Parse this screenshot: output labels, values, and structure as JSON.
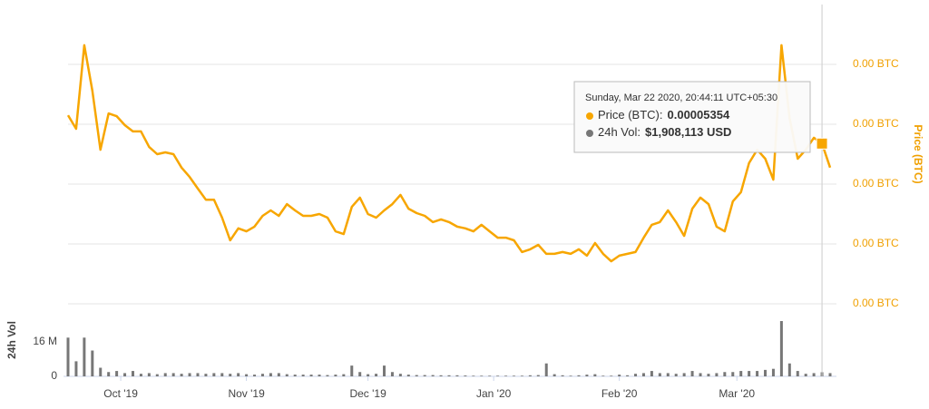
{
  "chart_data": [
    {
      "type": "line",
      "y_label": "Price (BTC)",
      "color": "#f7a600",
      "values": [
        6.3e-05,
        5.85e-05,
        8.64e-05,
        7.12e-05,
        5.15e-05,
        6.36e-05,
        6.27e-05,
        5.97e-05,
        5.76e-05,
        5.76e-05,
        5.24e-05,
        5e-05,
        5.06e-05,
        5e-05,
        4.55e-05,
        4.24e-05,
        3.85e-05,
        3.48e-05,
        3.48e-05,
        2.88e-05,
        2.12e-05,
        2.52e-05,
        2.42e-05,
        2.58e-05,
        2.94e-05,
        3.12e-05,
        2.94e-05,
        3.33e-05,
        3.12e-05,
        2.94e-05,
        2.94e-05,
        3e-05,
        2.88e-05,
        2.42e-05,
        2.33e-05,
        3.24e-05,
        3.55e-05,
        3e-05,
        2.88e-05,
        3.12e-05,
        3.33e-05,
        3.64e-05,
        3.18e-05,
        3.03e-05,
        2.94e-05,
        2.73e-05,
        2.82e-05,
        2.73e-05,
        2.58e-05,
        2.52e-05,
        2.42e-05,
        2.64e-05,
        2.42e-05,
        2.21e-05,
        2.21e-05,
        2.12e-05,
        1.73e-05,
        1.82e-05,
        1.97e-05,
        1.67e-05,
        1.67e-05,
        1.73e-05,
        1.67e-05,
        1.82e-05,
        1.61e-05,
        2.03e-05,
        1.67e-05,
        1.42e-05,
        1.61e-05,
        1.67e-05,
        1.73e-05,
        2.21e-05,
        2.64e-05,
        2.73e-05,
        3.12e-05,
        2.73e-05,
        2.27e-05,
        3.18e-05,
        3.55e-05,
        3.33e-05,
        2.58e-05,
        2.42e-05,
        3.42e-05,
        3.73e-05,
        4.7e-05,
        5.15e-05,
        4.85e-05,
        4.15e-05,
        8.64e-05,
        6.21e-05,
        4.85e-05,
        5.15e-05,
        5.55e-05,
        5.354e-05,
        4.55e-05
      ],
      "xlim": [
        0,
        94
      ],
      "ylim": [
        0,
        0.0001
      ],
      "yticks": [
        {
          "value": 0,
          "label": "0.00 BTC"
        },
        {
          "value": 2e-05,
          "label": "0.00 BTC"
        },
        {
          "value": 4e-05,
          "label": "0.00 BTC"
        },
        {
          "value": 6e-05,
          "label": "0.00 BTC"
        },
        {
          "value": 8e-05,
          "label": "0.00 BTC"
        }
      ],
      "grid": true,
      "tooltip": {
        "date": "Sunday, Mar 22 2020, 20:44:11 UTC+05:30",
        "price_name": "Price (BTC):",
        "volume_name": "24h Vol:",
        "volume_label": "$1,908,113 USD"
      }
    },
    {
      "type": "bar",
      "y_label": "24h Vol",
      "color": "#777777",
      "values": [
        18000000,
        7000000,
        18000000,
        12000000,
        4000000,
        2000000,
        2500000,
        1500000,
        2500000,
        1200000,
        1500000,
        1000000,
        1500000,
        1500000,
        1200000,
        1500000,
        1500000,
        1200000,
        1500000,
        1500000,
        1200000,
        1500000,
        1000000,
        800000,
        1200000,
        1500000,
        1500000,
        1000000,
        800000,
        800000,
        800000,
        800000,
        600000,
        800000,
        1000000,
        5000000,
        2000000,
        1000000,
        1200000,
        5000000,
        2000000,
        1200000,
        800000,
        600000,
        600000,
        600000,
        500000,
        500000,
        500000,
        400000,
        300000,
        300000,
        300000,
        300000,
        300000,
        300000,
        300000,
        500000,
        600000,
        6000000,
        1000000,
        500000,
        300000,
        500000,
        800000,
        1000000,
        300000,
        300000,
        800000,
        500000,
        1200000,
        1500000,
        2500000,
        1500000,
        1500000,
        1200000,
        1500000,
        2500000,
        1500000,
        1200000,
        1500000,
        2000000,
        2000000,
        2500000,
        2500000,
        2500000,
        3000000,
        3500000,
        25700000,
        6000000,
        2500000,
        1200000,
        1500000,
        1908113,
        1500000
      ],
      "xlim": [
        0,
        94
      ],
      "ylim": [
        0,
        29500000
      ],
      "yticks": [
        0,
        {
          "value": 16000000,
          "label": "16 M"
        }
      ],
      "xticks": [
        {
          "value": 6.5,
          "label": "Oct '19"
        },
        {
          "value": 22,
          "label": "Nov '19"
        },
        {
          "value": 37,
          "label": "Dec '19"
        },
        {
          "value": 52.5,
          "label": "Jan '20"
        },
        {
          "value": 68,
          "label": "Feb '20"
        },
        {
          "value": 82.5,
          "label": "Mar '20"
        }
      ]
    }
  ]
}
